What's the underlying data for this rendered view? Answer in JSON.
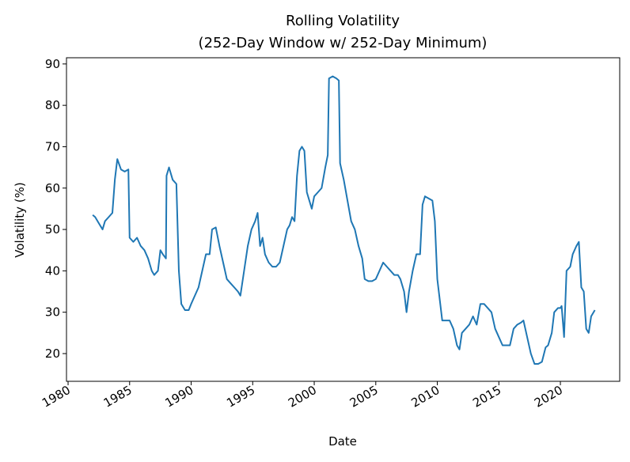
{
  "chart_data": {
    "type": "line",
    "title": [
      "Rolling Volatility",
      "(252-Day Window w/ 252-Day Minimum)"
    ],
    "xlabel": "Date",
    "ylabel": "Volatility (%)",
    "xlim": [
      1979.87,
      2024.82
    ],
    "ylim": [
      13.3,
      91.5
    ],
    "xticks": [
      1980,
      1985,
      1990,
      1995,
      2000,
      2005,
      2010,
      2015,
      2020
    ],
    "yticks": [
      20,
      30,
      40,
      50,
      60,
      70,
      80,
      90
    ],
    "series": [
      {
        "name": "Volatility",
        "color": "#1f77b4",
        "x": [
          1982.0,
          1982.2,
          1982.5,
          1982.8,
          1983.0,
          1983.3,
          1983.6,
          1983.8,
          1984.0,
          1984.3,
          1984.6,
          1984.9,
          1985.0,
          1985.3,
          1985.6,
          1985.9,
          1986.2,
          1986.5,
          1986.8,
          1987.0,
          1987.3,
          1987.5,
          1987.7,
          1987.95,
          1988.0,
          1988.2,
          1988.5,
          1988.8,
          1989.0,
          1989.2,
          1989.5,
          1989.8,
          1990.0,
          1990.3,
          1990.6,
          1990.9,
          1991.2,
          1991.5,
          1991.7,
          1992.0,
          1992.3,
          1992.6,
          1992.9,
          1993.2,
          1993.5,
          1993.8,
          1994.0,
          1994.3,
          1994.6,
          1994.9,
          1995.2,
          1995.4,
          1995.6,
          1995.8,
          1996.0,
          1996.3,
          1996.6,
          1996.9,
          1997.2,
          1997.5,
          1997.8,
          1998.0,
          1998.2,
          1998.4,
          1998.6,
          1998.8,
          1999.0,
          1999.2,
          1999.4,
          1999.6,
          1999.8,
          2000.0,
          2000.3,
          2000.6,
          2000.9,
          2001.1,
          2001.2,
          2001.5,
          2001.8,
          2002.0,
          2002.1,
          2002.4,
          2002.7,
          2003.0,
          2003.3,
          2003.6,
          2003.9,
          2004.1,
          2004.4,
          2004.7,
          2005.0,
          2005.3,
          2005.6,
          2005.9,
          2006.2,
          2006.5,
          2006.8,
          2007.0,
          2007.3,
          2007.5,
          2007.7,
          2008.0,
          2008.3,
          2008.6,
          2008.8,
          2009.0,
          2009.3,
          2009.6,
          2009.8,
          2010.0,
          2010.2,
          2010.4,
          2010.7,
          2011.0,
          2011.3,
          2011.6,
          2011.8,
          2012.0,
          2012.3,
          2012.6,
          2012.9,
          2013.2,
          2013.5,
          2013.8,
          2014.1,
          2014.4,
          2014.7,
          2015.0,
          2015.3,
          2015.6,
          2015.9,
          2016.2,
          2016.5,
          2016.8,
          2017.0,
          2017.3,
          2017.6,
          2017.9,
          2018.2,
          2018.5,
          2018.8,
          2019.0,
          2019.3,
          2019.5,
          2019.8,
          2020.0,
          2020.1,
          2020.3,
          2020.5,
          2020.8,
          2021.0,
          2021.3,
          2021.5,
          2021.7,
          2021.9,
          2022.1,
          2022.3,
          2022.5,
          2022.8
        ],
        "values": [
          53.5,
          53,
          51.5,
          50,
          52,
          53,
          54,
          62,
          67,
          64.5,
          64,
          64.5,
          48,
          47,
          48,
          46,
          45,
          43,
          40,
          39,
          40,
          45,
          44,
          43,
          63,
          65,
          62,
          61,
          40,
          32,
          30.5,
          30.5,
          32,
          34,
          36,
          40,
          44,
          44,
          50,
          50.5,
          46,
          42,
          38,
          37,
          36,
          35,
          34,
          40,
          46,
          50,
          52,
          54,
          46,
          48,
          44,
          42,
          41,
          41,
          42,
          46,
          50,
          51,
          53,
          52,
          63,
          69,
          70,
          69,
          59,
          57,
          55,
          58,
          59,
          60,
          65,
          68,
          86.5,
          87,
          86.5,
          86,
          66,
          62,
          57,
          52,
          50,
          46,
          43,
          38,
          37.5,
          37.5,
          38,
          40,
          42,
          41,
          40,
          39,
          39,
          38,
          35,
          30,
          35,
          40,
          44,
          44,
          56,
          58,
          57.5,
          57,
          52,
          38,
          33,
          28,
          28,
          28,
          26,
          22,
          21,
          25,
          26,
          27,
          29,
          27,
          32,
          32,
          31,
          30,
          26,
          24,
          22,
          22,
          22,
          26,
          27,
          27.5,
          28,
          24,
          20,
          17.5,
          17.5,
          18,
          21.5,
          22,
          25,
          30,
          31,
          31,
          31.5,
          24,
          40,
          41,
          44,
          46,
          47,
          36,
          35,
          26,
          25,
          29,
          30.5
        ]
      }
    ]
  }
}
